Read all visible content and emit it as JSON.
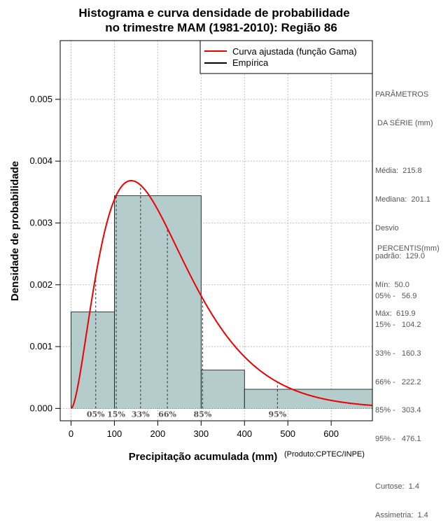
{
  "chart_data": {
    "type": "bar",
    "title_lines": [
      "Histograma e curva densidade de probabilidade",
      "no trimestre MAM (1981-2010): Região 86"
    ],
    "xlabel": "Precipitação acumulada (mm)",
    "ylabel": "Densidade de probabilidade",
    "credit": "(Produto:CPTEC/INPE)",
    "xlim": [
      -25,
      695
    ],
    "ylim": [
      -0.0002,
      0.00595
    ],
    "x_ticks": [
      0,
      100,
      200,
      300,
      400,
      500,
      600
    ],
    "x_tick_labels": [
      "0",
      "100",
      "200",
      "300",
      "400",
      "500",
      "600"
    ],
    "y_ticks": [
      0.0,
      0.001,
      0.002,
      0.003,
      0.004,
      0.005
    ],
    "y_tick_labels": [
      "0.000",
      "0.001",
      "0.002",
      "0.003",
      "0.004",
      "0.005"
    ],
    "grid": true,
    "histogram": {
      "name": "Empírica",
      "bins": [
        {
          "x0": 0,
          "x1": 100,
          "density": 0.00156
        },
        {
          "x0": 100,
          "x1": 300,
          "density": 0.00344
        },
        {
          "x0": 300,
          "x1": 400,
          "density": 0.00062
        },
        {
          "x0": 400,
          "x1": 700,
          "density": 0.00031
        }
      ],
      "color": "#b4cccc"
    },
    "fitted_curve": {
      "name": "Curva ajustada (função Gama)",
      "distribution": "gamma",
      "mean": 215.8,
      "sd": 129.0,
      "x_range": [
        0,
        695
      ],
      "color": "#ee0000"
    },
    "legend": [
      {
        "label": "Curva ajustada (função Gama)",
        "color": "#ee0000"
      },
      {
        "label": "Empírica",
        "color": "#000000"
      }
    ],
    "legend_position": "top-right",
    "percentile_markers": [
      {
        "label": "05%",
        "value": 56.9
      },
      {
        "label": "15%",
        "value": 104.2
      },
      {
        "label": "33%",
        "value": 160.3
      },
      {
        "label": "66%",
        "value": 222.2
      },
      {
        "label": "85%",
        "value": 303.4
      },
      {
        "label": "95%",
        "value": 476.1
      }
    ]
  },
  "side_panel": {
    "parametros": [
      "PARÂMETROS",
      " DA SÉRIE (mm)",
      "",
      "Média:  215.8",
      "Mediana:  201.1",
      "Desvio",
      "padrão:  129.0",
      "Mín:  50.0",
      "Máx:  619.9"
    ],
    "percentis": [
      " PERCENTIS(mm)",
      "",
      "05% -   56.9",
      "15% -   104.2",
      "33% -   160.3",
      "66% -   222.2",
      "85% -   303.4",
      "95% -   476.1",
      "",
      "Curtose:  1.4",
      "Assimetria:  1.4"
    ]
  }
}
